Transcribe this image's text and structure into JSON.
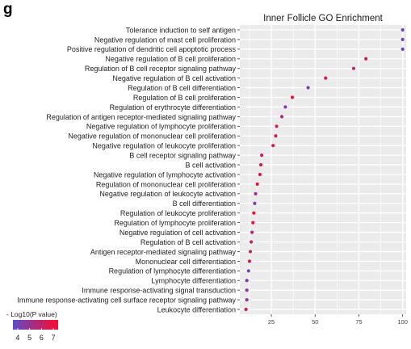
{
  "panel_label": "g",
  "chart_data": {
    "type": "scatter",
    "title": "Inner Follicle GO Enrichment",
    "xlabel": "",
    "ylabel": "",
    "xlim": [
      7,
      102
    ],
    "xticks": [
      25,
      50,
      75,
      100
    ],
    "grid": true,
    "categories": [
      "Tolerance induction to self antigen",
      "Negative regulation of mast cell proliferation",
      "Positive regulation of dendritic cell apoptotic process",
      "Negative regulation of B cell proliferation",
      "Regulation of B cell receptor signaling pathway",
      "Negative regulation of B cell activation",
      "Regulation of B cell differentiation",
      "Regulation of B cell proliferation",
      "Regulation of erythrocyte differentiation",
      "Regulation of antigen receptor-mediated signaling pathway",
      "Negative regulation of lymphocyte proliferation",
      "Negative regulation of mononuclear cell proliferation",
      "Negative regulation of leukocyte proliferation",
      "B cell receptor signaling pathway",
      "B cell activation",
      "Negative regulation of lymphocyte activation",
      "Regulation of mononuclear cell proliferation",
      "Negative regulation of leukocyte activation",
      "B cell differentiation",
      "Regulation of leukocyte proliferation",
      "Regulation of lymphocyte proliferation",
      "Negative regulation of cell activation",
      "Regulation of B cell activation",
      "Antigen receptor-mediated signaling pathway",
      "Mononuclear cell differentiation",
      "Regulation of lymphocyte differentiation",
      "Lymphocyte differentiation",
      "Immune response-activating signal transduction",
      "Immune response-activating cell surface receptor signaling pathway",
      "Leukocyte differentiation"
    ],
    "series": [
      {
        "x": [
          100,
          100,
          100,
          79,
          72,
          56,
          46,
          37,
          33,
          31,
          28,
          27.5,
          26,
          19.5,
          19,
          18.5,
          17,
          16,
          15.5,
          15,
          14.5,
          14,
          13.5,
          13,
          12.5,
          12,
          11,
          11,
          11,
          10.5
        ],
        "neglog10p": [
          3.9,
          4.0,
          4.0,
          6.2,
          5.8,
          6.7,
          4.3,
          6.9,
          4.6,
          5.5,
          6.6,
          6.2,
          6.4,
          6.0,
          6.6,
          6.5,
          7.0,
          5.3,
          4.3,
          7.2,
          6.7,
          5.4,
          6.1,
          5.8,
          6.5,
          4.0,
          4.4,
          4.7,
          4.8,
          6.2
        ]
      }
    ],
    "legend": {
      "title": "- Log10(P value)",
      "position": "bottom-left",
      "ticks": [
        4,
        5,
        6,
        7
      ],
      "range": [
        3.6,
        7.4
      ],
      "color_low": "#5b4cc7",
      "color_high": "#ff0a2e"
    },
    "colors": {
      "panel_background": "#ebebeb",
      "grid": "#ffffff"
    }
  }
}
